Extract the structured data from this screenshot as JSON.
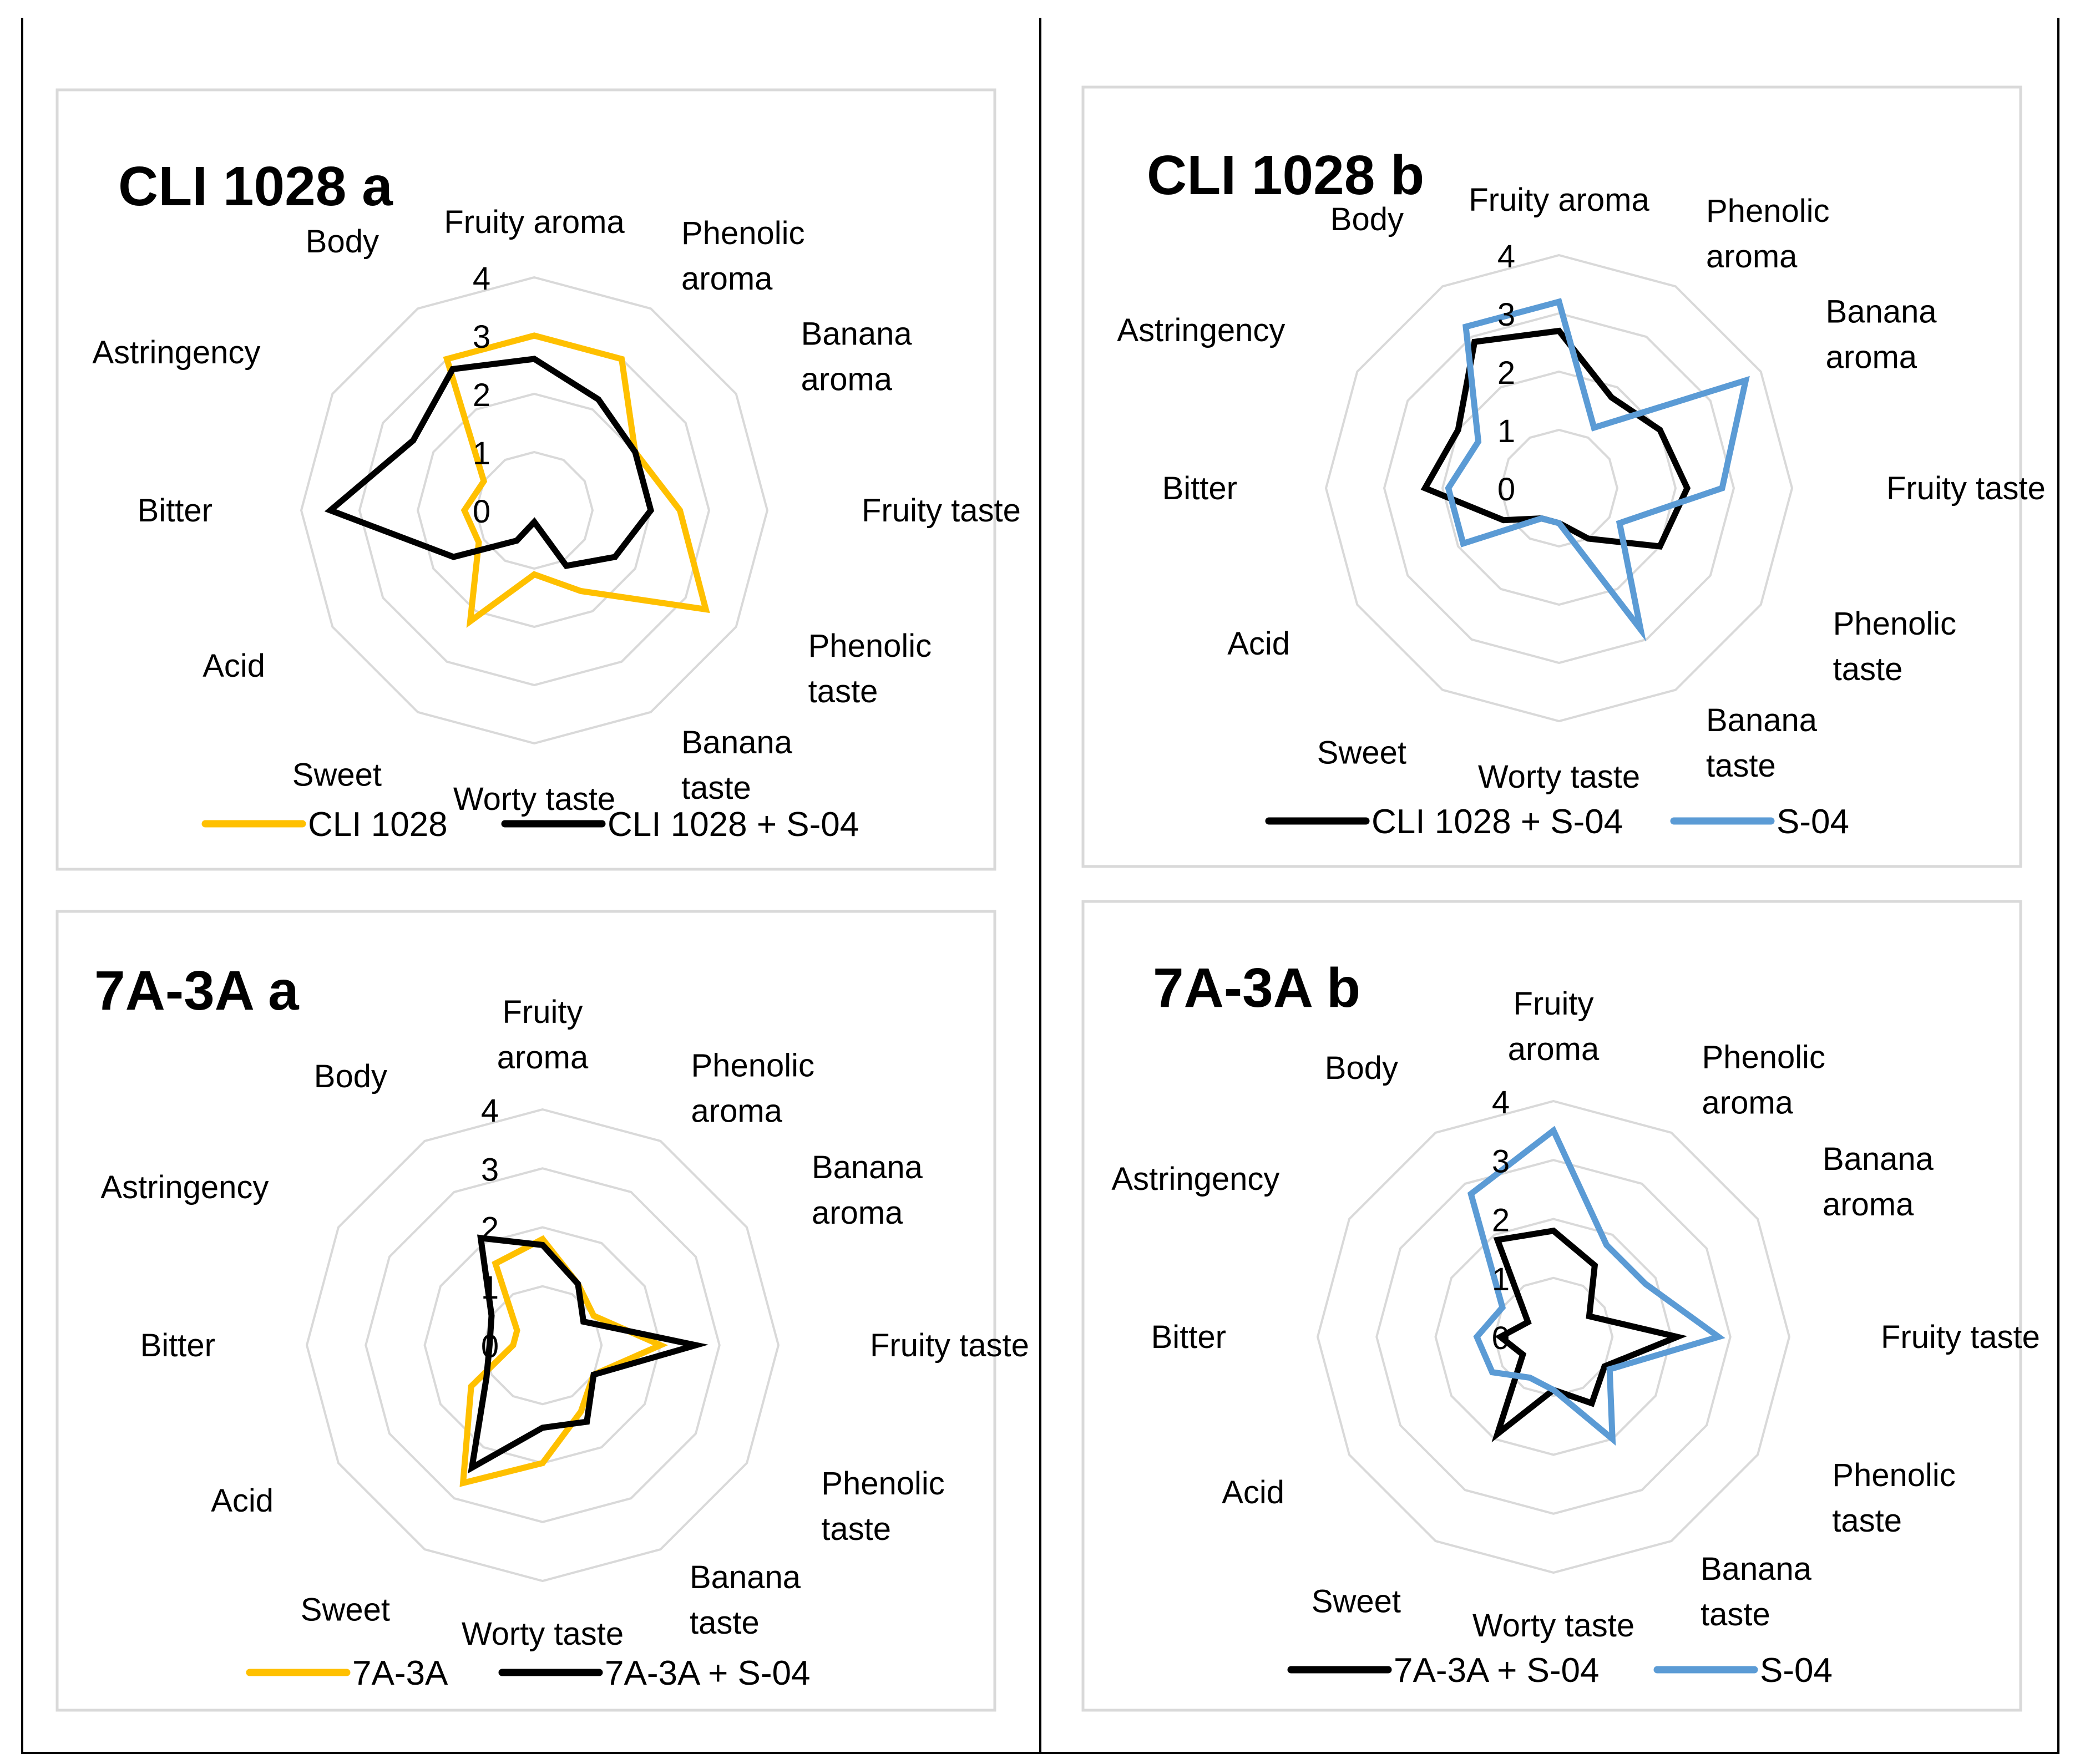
{
  "figure": {
    "colors": {
      "grid": "#d9d9d9",
      "frame": "#d9d9d9",
      "black": "#000000",
      "yellow": "#ffc000",
      "blue": "#5b9bd5"
    }
  },
  "chart_data": [
    {
      "id": "cli-a",
      "type": "radar",
      "title": "CLI 1028 a",
      "categories": [
        [
          "Fruity aroma"
        ],
        [
          "Phenolic",
          "aroma"
        ],
        [
          "Banana",
          "aroma"
        ],
        [
          "Fruity taste"
        ],
        [
          "Phenolic",
          "taste"
        ],
        [
          "Banana",
          "taste"
        ],
        [
          "Worty taste"
        ],
        [
          "Sweet"
        ],
        [
          "Acid"
        ],
        [
          "Bitter"
        ],
        [
          "Astringency"
        ],
        [
          "Body"
        ]
      ],
      "rlim": [
        0,
        4
      ],
      "ticks": [
        "0",
        "1",
        "2",
        "3",
        "4"
      ],
      "legend_position": "bottom",
      "series": [
        {
          "name": "CLI 1028",
          "color": "#ffc000",
          "values": [
            3.0,
            3.0,
            2.0,
            2.5,
            3.4,
            1.6,
            1.1,
            2.2,
            1.1,
            1.2,
            1.0,
            3.0
          ]
        },
        {
          "name": "CLI 1028 + S-04",
          "color": "#000000",
          "values": [
            2.6,
            2.2,
            2.0,
            2.0,
            1.6,
            1.1,
            0.2,
            0.6,
            1.6,
            3.5,
            2.4,
            2.8
          ]
        }
      ]
    },
    {
      "id": "cli-b",
      "type": "radar",
      "title": "CLI 1028 b",
      "categories": [
        [
          "Fruity aroma"
        ],
        [
          "Phenolic",
          "aroma"
        ],
        [
          "Banana",
          "aroma"
        ],
        [
          "Fruity taste"
        ],
        [
          "Phenolic",
          "taste"
        ],
        [
          "Banana",
          "taste"
        ],
        [
          "Worty taste"
        ],
        [
          "Sweet"
        ],
        [
          "Acid"
        ],
        [
          "Bitter"
        ],
        [
          "Astringency"
        ],
        [
          "Body"
        ]
      ],
      "rlim": [
        0,
        4
      ],
      "ticks": [
        "0",
        "1",
        "2",
        "3",
        "4"
      ],
      "legend_position": "bottom",
      "series": [
        {
          "name": "CLI 1028 + S-04",
          "color": "#000000",
          "values": [
            2.7,
            1.8,
            2.0,
            2.2,
            2.0,
            1.0,
            0.6,
            0.6,
            1.1,
            2.3,
            2.0,
            2.9
          ]
        },
        {
          "name": "S-04",
          "color": "#5b9bd5",
          "values": [
            3.2,
            1.2,
            3.7,
            2.8,
            1.2,
            2.8,
            0.6,
            0.6,
            1.9,
            1.9,
            1.6,
            3.2
          ]
        }
      ]
    },
    {
      "id": "sa-a",
      "type": "radar",
      "title": "7A-3A a",
      "categories": [
        [
          "Fruity",
          "aroma"
        ],
        [
          "Phenolic",
          "aroma"
        ],
        [
          "Banana",
          "aroma"
        ],
        [
          "Fruity taste"
        ],
        [
          "Phenolic",
          "taste"
        ],
        [
          "Banana",
          "taste"
        ],
        [
          "Worty taste"
        ],
        [
          "Sweet"
        ],
        [
          "Acid"
        ],
        [
          "Bitter"
        ],
        [
          "Astringency"
        ],
        [
          "Body"
        ]
      ],
      "rlim": [
        0,
        4
      ],
      "ticks": [
        "0",
        "1",
        "2",
        "3",
        "4"
      ],
      "legend_position": "bottom",
      "series": [
        {
          "name": "7A-3A",
          "color": "#ffc000",
          "values": [
            1.8,
            1.2,
            1.0,
            2.0,
            1.0,
            1.3,
            2.0,
            2.7,
            1.4,
            0.5,
            0.5,
            1.6
          ]
        },
        {
          "name": "7A-3A + S-04",
          "color": "#000000",
          "values": [
            1.7,
            1.2,
            0.8,
            2.6,
            1.0,
            1.5,
            1.4,
            2.4,
            1.1,
            0.9,
            1.0,
            2.1
          ]
        }
      ]
    },
    {
      "id": "sa-b",
      "type": "radar",
      "title": "7A-3A b",
      "categories": [
        [
          "Fruity",
          "aroma"
        ],
        [
          "Phenolic",
          "aroma"
        ],
        [
          "Banana",
          "aroma"
        ],
        [
          "Fruity taste"
        ],
        [
          "Phenolic",
          "taste"
        ],
        [
          "Banana",
          "taste"
        ],
        [
          "Worty taste"
        ],
        [
          "Sweet"
        ],
        [
          "Acid"
        ],
        [
          "Bitter"
        ],
        [
          "Astringency"
        ],
        [
          "Body"
        ]
      ],
      "rlim": [
        0,
        4
      ],
      "ticks": [
        "0",
        "1",
        "2",
        "3",
        "4"
      ],
      "legend_position": "bottom",
      "series": [
        {
          "name": "7A-3A + S-04",
          "color": "#000000",
          "values": [
            1.8,
            1.4,
            0.7,
            2.1,
            1.0,
            1.3,
            0.9,
            1.9,
            0.6,
            0.9,
            0.5,
            1.9
          ]
        },
        {
          "name": "S-04",
          "color": "#5b9bd5",
          "values": [
            3.5,
            1.8,
            1.8,
            2.8,
            1.1,
            2.0,
            0.9,
            0.8,
            1.2,
            1.3,
            1.0,
            2.8
          ]
        }
      ]
    }
  ]
}
